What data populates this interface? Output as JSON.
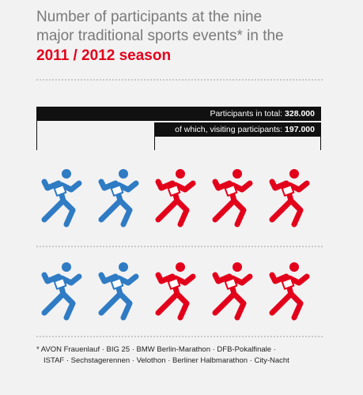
{
  "title": {
    "line1": "Number of participants at the nine",
    "line2": "major traditional sports events* in the",
    "season": "2011 / 2012 season"
  },
  "colors": {
    "blue": "#2f7bc4",
    "red": "#e3001b",
    "dark": "#111111"
  },
  "chart_data": {
    "type": "pictogram",
    "icon": "runner-icon",
    "rows": 2,
    "icons_per_row": 5,
    "series": [
      {
        "label": "Participants in total:",
        "value": "328.000"
      },
      {
        "label": "of which, visiting participants:",
        "value": "197.000"
      }
    ],
    "icon_colors_per_row": [
      "blue",
      "blue",
      "red",
      "red",
      "red"
    ]
  },
  "footnote": {
    "line1": "* AVON Frauenlauf · BIG 25 · BMW Berlin-Marathon · DFB-Pokalfinale ·",
    "line2": "ISTAF · Sechstagerennen · Velothon · Berliner Halbmarathon · City-Nacht"
  }
}
